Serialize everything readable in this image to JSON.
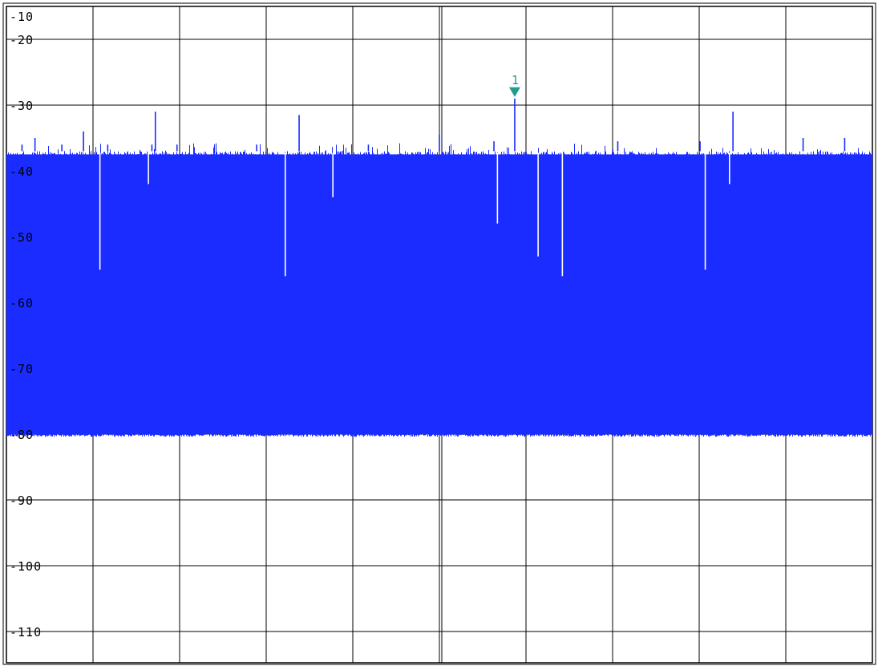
{
  "chart_data": {
    "type": "line",
    "title": "",
    "xlabel": "",
    "ylabel": "",
    "y_ticks": [
      -10,
      -20,
      -30,
      -40,
      -50,
      -60,
      -70,
      -80,
      -90,
      -100,
      -110
    ],
    "y_tick_labels": [
      "-10",
      "-20",
      "-30",
      "-40",
      "-50",
      "-60",
      "-70",
      "-80",
      "-90",
      "-100",
      "-110"
    ],
    "ylim": [
      -115,
      -5
    ],
    "xlim": [
      0,
      1
    ],
    "x_divisions": 10,
    "grid": true,
    "trace": {
      "description_kind": "dense noise spectrum",
      "noise_floor_db": -80,
      "upper_envelope_db": -37,
      "points": 1080,
      "spikes": [
        {
          "x": 0.018,
          "y": -36
        },
        {
          "x": 0.033,
          "y": -35
        },
        {
          "x": 0.064,
          "y": -36
        },
        {
          "x": 0.089,
          "y": -34
        },
        {
          "x": 0.117,
          "y": -36
        },
        {
          "x": 0.168,
          "y": -36
        },
        {
          "x": 0.172,
          "y": -31
        },
        {
          "x": 0.197,
          "y": -36
        },
        {
          "x": 0.289,
          "y": -36
        },
        {
          "x": 0.338,
          "y": -31.5
        },
        {
          "x": 0.418,
          "y": -36
        },
        {
          "x": 0.5,
          "y": -34.5
        },
        {
          "x": 0.563,
          "y": -35.5
        },
        {
          "x": 0.587,
          "y": -29
        },
        {
          "x": 0.706,
          "y": -35.5
        },
        {
          "x": 0.801,
          "y": -35.5
        },
        {
          "x": 0.839,
          "y": -31
        },
        {
          "x": 0.92,
          "y": -35
        },
        {
          "x": 0.968,
          "y": -35
        }
      ],
      "dips": [
        {
          "x": 0.108,
          "y": -55
        },
        {
          "x": 0.164,
          "y": -42
        },
        {
          "x": 0.322,
          "y": -56
        },
        {
          "x": 0.377,
          "y": -44
        },
        {
          "x": 0.567,
          "y": -48
        },
        {
          "x": 0.614,
          "y": -53
        },
        {
          "x": 0.642,
          "y": -56
        },
        {
          "x": 0.807,
          "y": -55
        },
        {
          "x": 0.835,
          "y": -42
        }
      ]
    },
    "marker": {
      "label": "1",
      "x": 0.587,
      "y": -29
    }
  },
  "colors": {
    "background": "#ffffff",
    "grid": "#000000",
    "trace": "#1a2cff",
    "marker": "#1f9e8f"
  }
}
